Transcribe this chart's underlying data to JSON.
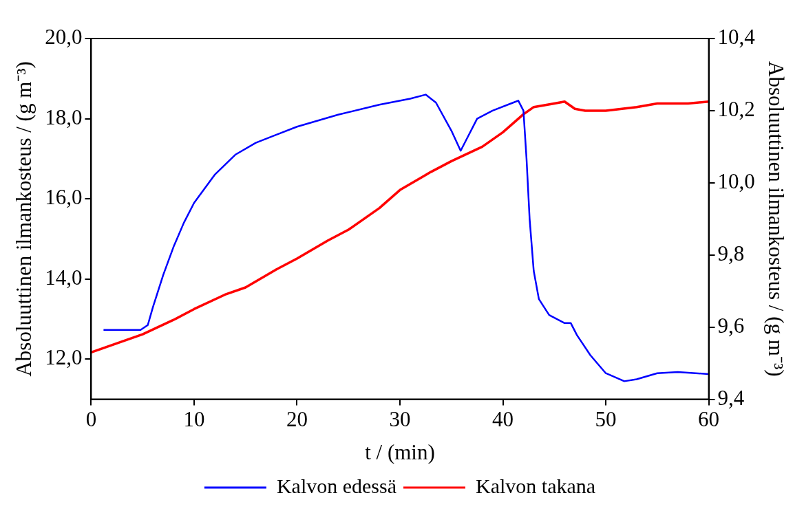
{
  "chart_data": {
    "type": "line",
    "xlabel": "t / (min)",
    "ylabel": "Absoluuttinen ilmankosteus / (g m⁻³)",
    "y2label": "Absoluuttinen ilmankosteus / (g m⁻³)",
    "xlim": [
      0,
      60
    ],
    "xticks": [
      0,
      10,
      20,
      30,
      40,
      50,
      60
    ],
    "ylim": [
      11,
      20
    ],
    "yticks": [
      {
        "value": 12,
        "label": "12,0"
      },
      {
        "value": 14,
        "label": "14,0"
      },
      {
        "value": 16,
        "label": "16,0"
      },
      {
        "value": 18,
        "label": "18,0"
      },
      {
        "value": 20,
        "label": "20,0"
      }
    ],
    "y2lim": [
      9.4,
      10.4
    ],
    "y2ticks": [
      {
        "value": 9.4,
        "label": "9,4"
      },
      {
        "value": 9.6,
        "label": "9,6"
      },
      {
        "value": 9.8,
        "label": "9,8"
      },
      {
        "value": 10.0,
        "label": "10,0"
      },
      {
        "value": 10.2,
        "label": "10,2"
      },
      {
        "value": 10.4,
        "label": "10,4"
      }
    ],
    "grid": false,
    "legend": "bottom",
    "marker": "none",
    "line_style": "solid",
    "series": [
      {
        "name": "Kalvon edessä",
        "color": "#0000ff",
        "x": [
          1.2,
          4.8,
          5.5,
          6,
          7,
          8,
          9,
          10,
          12,
          14,
          16,
          18,
          20,
          24,
          28,
          31,
          32.5,
          33.5,
          35,
          35.9,
          36.5,
          37.5,
          39,
          41,
          41.5,
          42,
          42.3,
          42.6,
          43,
          43.5,
          44.5,
          46,
          46.6,
          47.2,
          48.5,
          50,
          51.8,
          53,
          55,
          57,
          60
        ],
        "values": [
          12.73,
          12.73,
          12.85,
          13.3,
          14.1,
          14.8,
          15.4,
          15.9,
          16.6,
          17.1,
          17.4,
          17.6,
          17.8,
          18.1,
          18.35,
          18.5,
          18.6,
          18.4,
          17.7,
          17.2,
          17.5,
          18.0,
          18.2,
          18.4,
          18.45,
          18.2,
          17.0,
          15.5,
          14.2,
          13.5,
          13.1,
          12.9,
          12.9,
          12.6,
          12.1,
          11.65,
          11.45,
          11.5,
          11.65,
          11.68,
          11.63
        ]
      },
      {
        "name": "Kalvon takana",
        "color": "#ff0000",
        "axis": "y2",
        "x": [
          0,
          2,
          5,
          8,
          10,
          13,
          15,
          18,
          20,
          23,
          25,
          28,
          30,
          33,
          35,
          38,
          40,
          42,
          43,
          45,
          46,
          47,
          48,
          50,
          53,
          55,
          58,
          60
        ],
        "values": [
          9.53,
          9.55,
          9.58,
          9.62,
          9.65,
          9.69,
          9.71,
          9.76,
          9.79,
          9.84,
          9.87,
          9.93,
          9.98,
          10.03,
          10.06,
          10.1,
          10.14,
          10.19,
          10.21,
          10.22,
          10.225,
          10.205,
          10.2,
          10.2,
          10.21,
          10.22,
          10.22,
          10.225
        ]
      }
    ]
  }
}
